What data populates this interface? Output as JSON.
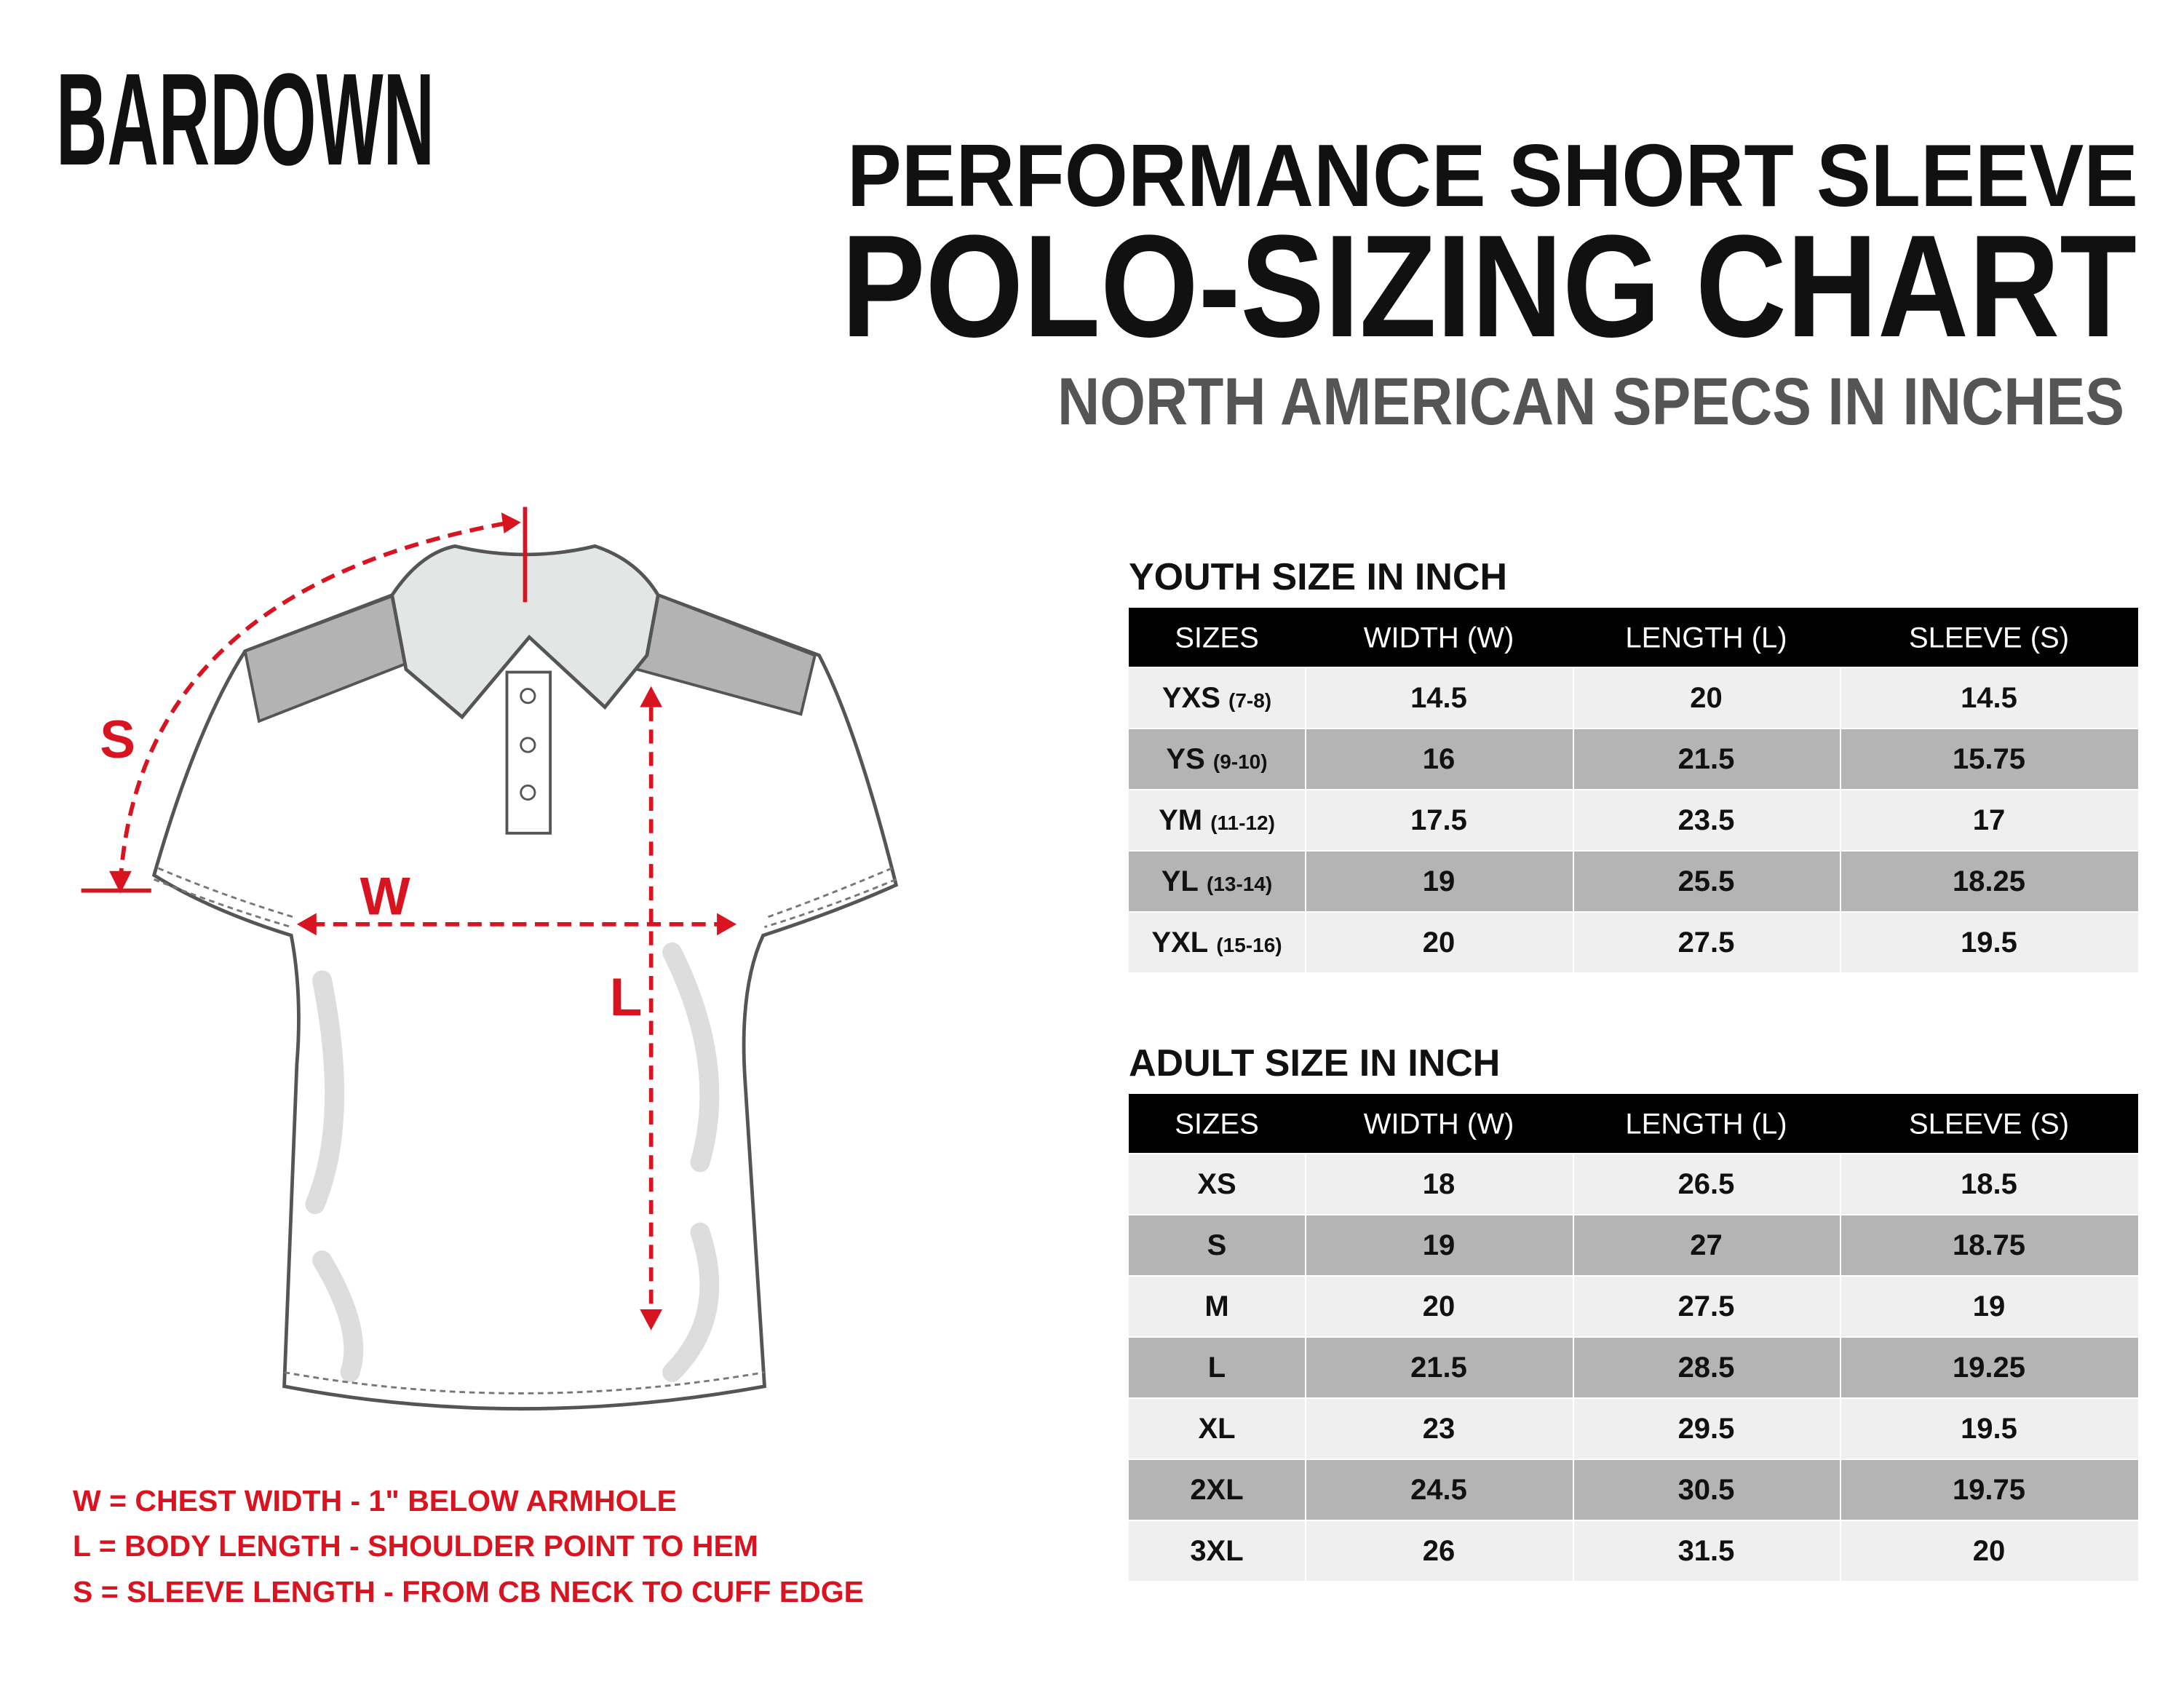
{
  "brand": "BARDOWN",
  "title": {
    "line1": "PERFORMANCE SHORT SLEEVE",
    "line2": "POLO-SIZING CHART",
    "subtitle": "NORTH AMERICAN SPECS IN INCHES"
  },
  "diagram": {
    "labels": {
      "sleeve": "S",
      "width": "W",
      "length": "L"
    },
    "notes": [
      "W = CHEST WIDTH - 1\" BELOW ARMHOLE",
      "L = BODY LENGTH - SHOULDER POINT TO HEM",
      "S = SLEEVE LENGTH - FROM CB NECK TO CUFF EDGE"
    ]
  },
  "youth_table": {
    "title": "YOUTH SIZE IN INCH",
    "headers": [
      "SIZES",
      "WIDTH (W)",
      "LENGTH (L)",
      "SLEEVE (S)"
    ],
    "rows": [
      {
        "size": "YXS",
        "ages": "(7-8)",
        "values": [
          14.5,
          20,
          14.5
        ]
      },
      {
        "size": "YS",
        "ages": "(9-10)",
        "values": [
          16,
          21.5,
          15.75
        ]
      },
      {
        "size": "YM",
        "ages": "(11-12)",
        "values": [
          17.5,
          23.5,
          17
        ]
      },
      {
        "size": "YL",
        "ages": "(13-14)",
        "values": [
          19,
          25.5,
          18.25
        ]
      },
      {
        "size": "YXL",
        "ages": "(15-16)",
        "values": [
          20,
          27.5,
          19.5
        ]
      }
    ]
  },
  "adult_table": {
    "title": "ADULT SIZE IN INCH",
    "headers": [
      "SIZES",
      "WIDTH (W)",
      "LENGTH (L)",
      "SLEEVE (S)"
    ],
    "rows": [
      {
        "size": "XS",
        "values": [
          18,
          26.5,
          18.5
        ]
      },
      {
        "size": "S",
        "values": [
          19,
          27,
          18.75
        ]
      },
      {
        "size": "M",
        "values": [
          20,
          27.5,
          19
        ]
      },
      {
        "size": "L",
        "values": [
          21.5,
          28.5,
          19.25
        ]
      },
      {
        "size": "XL",
        "values": [
          23,
          29.5,
          19.5
        ]
      },
      {
        "size": "2XL",
        "values": [
          24.5,
          30.5,
          19.75
        ]
      },
      {
        "size": "3XL",
        "values": [
          26,
          31.5,
          20
        ]
      }
    ]
  }
}
